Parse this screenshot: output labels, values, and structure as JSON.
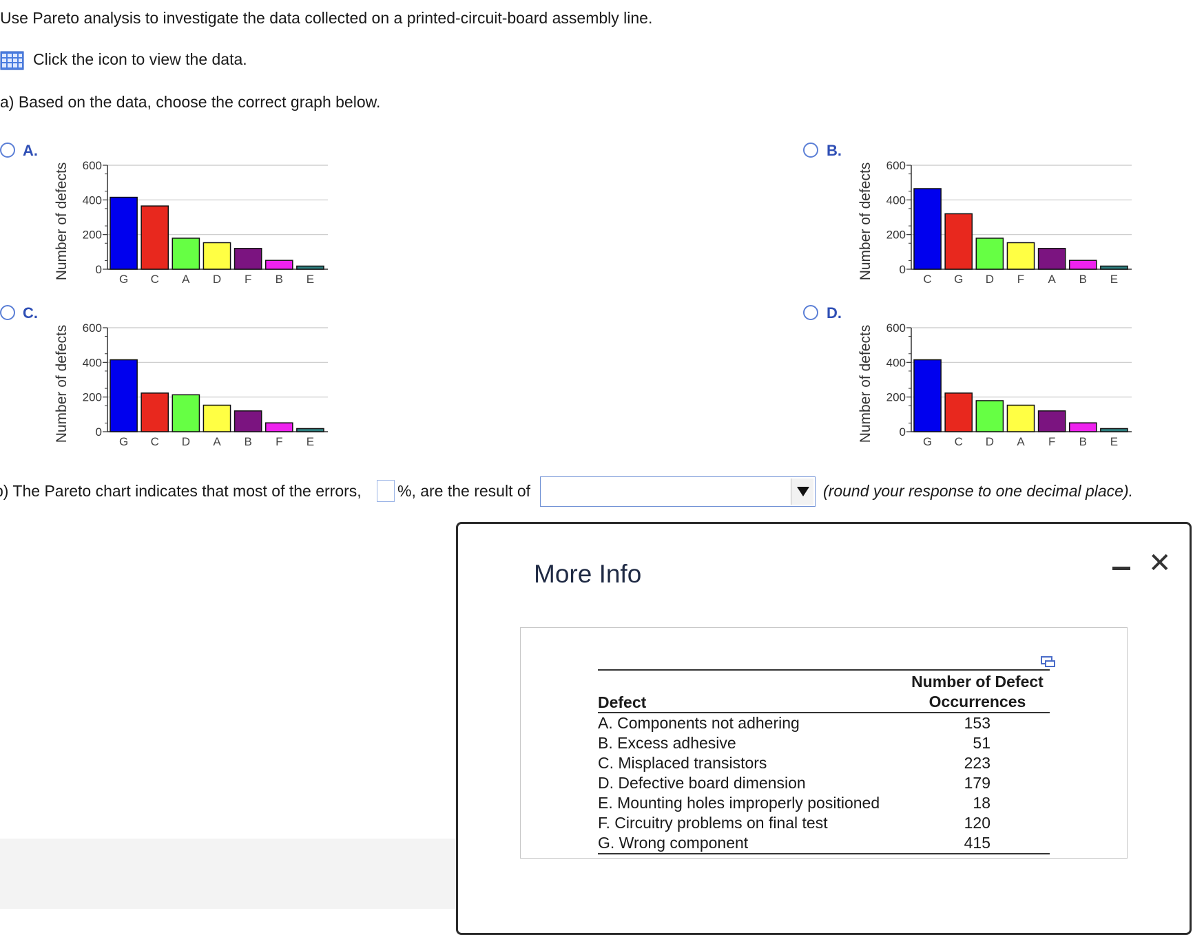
{
  "question": {
    "intro": "Use Pareto analysis to investigate the data collected on a printed-circuit-board assembly line.",
    "data_link": "Click the icon to view the data.",
    "part_a": "a) Based on the data, choose the correct graph below.",
    "part_b_before": "b) The Pareto chart indicates that most of the errors,",
    "part_b_middle": "%, are the result of",
    "part_b_after": "(round your response to one decimal place).",
    "percent_value": "",
    "dropdown_selected": ""
  },
  "options": [
    {
      "letter": "A.",
      "ylabel": "Number of defects",
      "chart_data": {
        "type": "bar",
        "categories": [
          "G",
          "C",
          "A",
          "D",
          "F",
          "B",
          "E"
        ],
        "values": [
          415,
          365,
          179,
          153,
          120,
          51,
          18
        ],
        "colors": [
          "#0000ee",
          "#e8281e",
          "#66ff44",
          "#ffff44",
          "#7b1480",
          "#ee22ee",
          "#2e7f7f"
        ],
        "ylim": [
          0,
          600
        ],
        "yticks": [
          0,
          200,
          400,
          600
        ],
        "ylabel": "Number of defects"
      }
    },
    {
      "letter": "B.",
      "ylabel": "Number of defects",
      "chart_data": {
        "type": "bar",
        "categories": [
          "C",
          "G",
          "D",
          "F",
          "A",
          "B",
          "E"
        ],
        "values": [
          465,
          320,
          179,
          153,
          120,
          51,
          18
        ],
        "colors": [
          "#0000ee",
          "#e8281e",
          "#66ff44",
          "#ffff44",
          "#7b1480",
          "#ee22ee",
          "#2e7f7f"
        ],
        "ylim": [
          0,
          600
        ],
        "yticks": [
          0,
          200,
          400,
          600
        ],
        "ylabel": "Number of defects"
      }
    },
    {
      "letter": "C.",
      "ylabel": "Number of defects",
      "chart_data": {
        "type": "bar",
        "categories": [
          "G",
          "C",
          "D",
          "A",
          "B",
          "F",
          "E"
        ],
        "values": [
          415,
          223,
          213,
          153,
          120,
          51,
          18
        ],
        "colors": [
          "#0000ee",
          "#e8281e",
          "#66ff44",
          "#ffff44",
          "#7b1480",
          "#ee22ee",
          "#2e7f7f"
        ],
        "ylim": [
          0,
          600
        ],
        "yticks": [
          0,
          200,
          400,
          600
        ],
        "ylabel": "Number of defects"
      }
    },
    {
      "letter": "D.",
      "ylabel": "Number of defects",
      "chart_data": {
        "type": "bar",
        "categories": [
          "G",
          "C",
          "D",
          "A",
          "F",
          "B",
          "E"
        ],
        "values": [
          415,
          223,
          179,
          153,
          120,
          51,
          18
        ],
        "colors": [
          "#0000ee",
          "#e8281e",
          "#66ff44",
          "#ffff44",
          "#7b1480",
          "#ee22ee",
          "#2e7f7f"
        ],
        "ylim": [
          0,
          600
        ],
        "yticks": [
          0,
          200,
          400,
          600
        ],
        "ylabel": "Number of defects"
      }
    }
  ],
  "modal": {
    "title": "More Info",
    "table": {
      "header_defect": "Defect",
      "header_num_line1": "Number of Defect",
      "header_num_line2": "Occurrences",
      "rows": [
        {
          "defect": "A. Components not adhering",
          "count": "153"
        },
        {
          "defect": "B. Excess adhesive",
          "count": "51"
        },
        {
          "defect": "C. Misplaced transistors",
          "count": "223"
        },
        {
          "defect": "D. Defective board dimension",
          "count": "179"
        },
        {
          "defect": "E. Mounting holes improperly positioned",
          "count": "18"
        },
        {
          "defect": "F. Circuitry problems on final test",
          "count": "120"
        },
        {
          "defect": "G. Wrong component",
          "count": "415"
        }
      ]
    }
  },
  "icons": {
    "data_table": "table-grid-icon",
    "close": "close-icon",
    "minimize": "minimize-icon",
    "copy": "copy-icon"
  },
  "colors": {
    "accent": "#2f4fb5",
    "radio_border": "#5b7fd6"
  }
}
